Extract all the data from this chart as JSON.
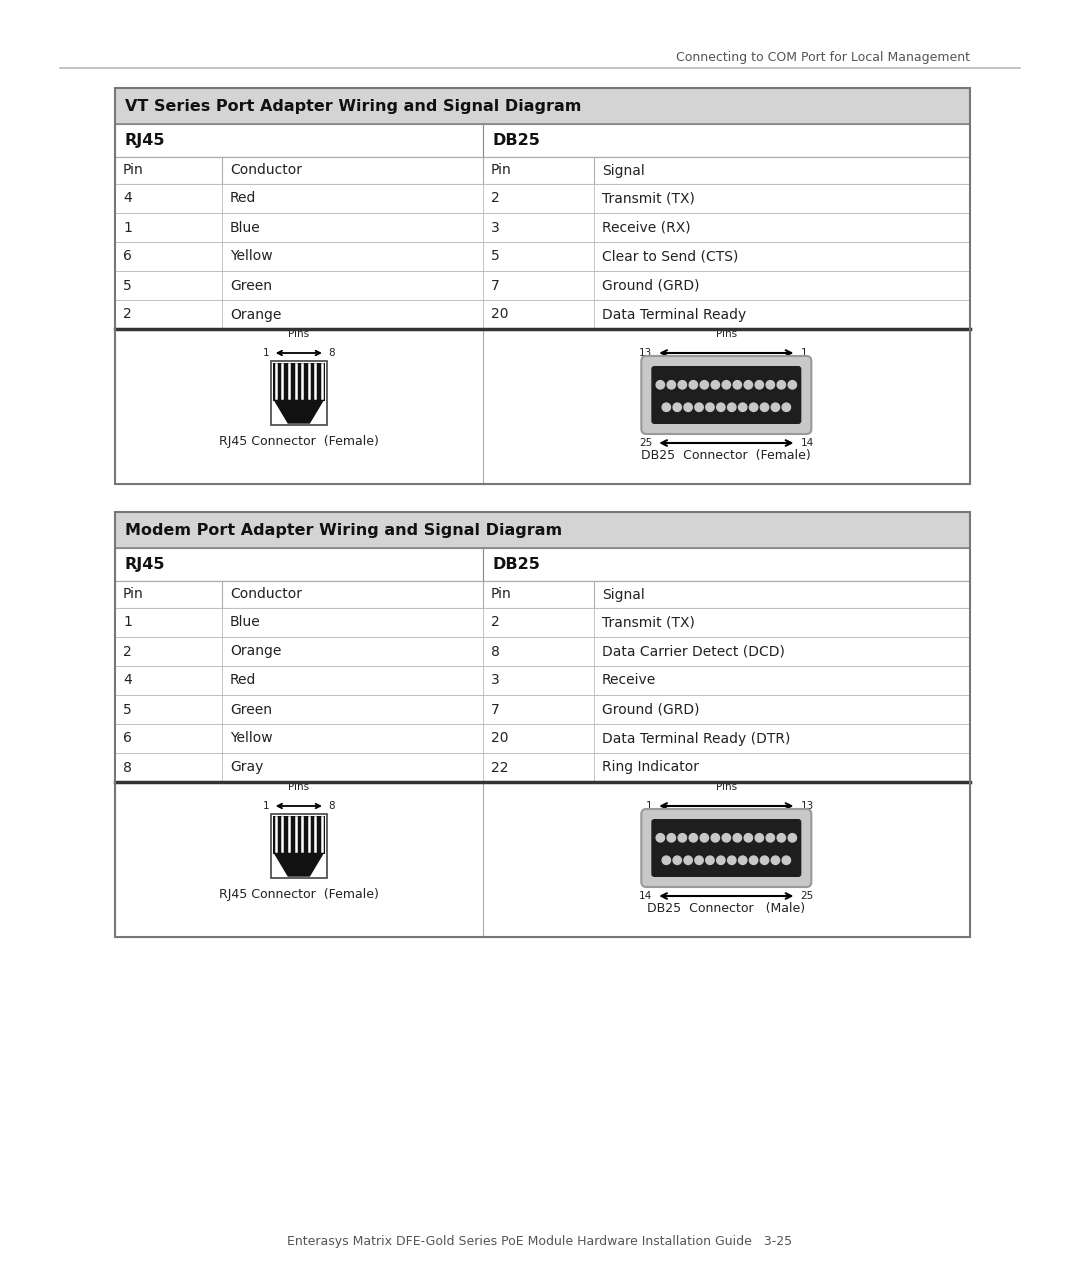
{
  "page_header_right": "Connecting to COM Port for Local Management",
  "page_footer": "Enterasys Matrix DFE-Gold Series PoE Module Hardware Installation Guide   3-25",
  "table1_title": "VT Series Port Adapter Wiring and Signal Diagram",
  "table1_col_headers": [
    "Pin",
    "Conductor",
    "Pin",
    "Signal"
  ],
  "table1_rows": [
    [
      "4",
      "Red",
      "2",
      "Transmit (TX)"
    ],
    [
      "1",
      "Blue",
      "3",
      "Receive (RX)"
    ],
    [
      "6",
      "Yellow",
      "5",
      "Clear to Send (CTS)"
    ],
    [
      "5",
      "Green",
      "7",
      "Ground (GRD)"
    ],
    [
      "2",
      "Orange",
      "20",
      "Data Terminal Ready"
    ]
  ],
  "table1_rj45_label": "RJ45 Connector  (Female)",
  "table1_db25_label": "DB25  Connector  (Female)",
  "table2_title": "Modem Port Adapter Wiring and Signal Diagram",
  "table2_col_headers": [
    "Pin",
    "Conductor",
    "Pin",
    "Signal"
  ],
  "table2_rows": [
    [
      "1",
      "Blue",
      "2",
      "Transmit (TX)"
    ],
    [
      "2",
      "Orange",
      "8",
      "Data Carrier Detect (DCD)"
    ],
    [
      "4",
      "Red",
      "3",
      "Receive"
    ],
    [
      "5",
      "Green",
      "7",
      "Ground (GRD)"
    ],
    [
      "6",
      "Yellow",
      "20",
      "Data Terminal Ready (DTR)"
    ],
    [
      "8",
      "Gray",
      "22",
      "Ring Indicator"
    ]
  ],
  "table2_rj45_label": "RJ45 Connector  (Female)",
  "table2_db25_label": "DB25  Connector   (Male)"
}
